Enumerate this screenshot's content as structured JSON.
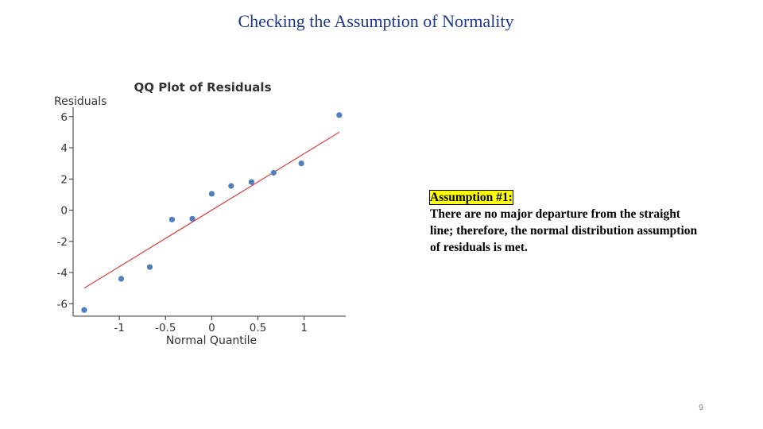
{
  "slide": {
    "title": "Checking the Assumption of Normality",
    "page_number": "9"
  },
  "note": {
    "heading": "Assumption #1:",
    "body": "There are no major departure from the straight line; therefore, the normal distribution assumption of residuals is met."
  },
  "chart_data": {
    "type": "scatter",
    "title": "QQ Plot of Residuals",
    "xlabel": "Normal Quantile",
    "ylabel": "Residuals",
    "xlim": [
      -1.5,
      1.45
    ],
    "ylim": [
      -6.8,
      6.6
    ],
    "xticks": [
      -1,
      -0.5,
      0,
      0.5,
      1
    ],
    "xtick_labels": [
      "-1",
      "-0.5",
      "0",
      "0.5",
      "1"
    ],
    "yticks": [
      6,
      4,
      2,
      0,
      -2,
      -4,
      -6
    ],
    "ytick_labels": [
      "6",
      "4",
      "2",
      "0",
      "-2",
      "-4",
      "-6"
    ],
    "points": [
      {
        "x": -1.38,
        "y": -6.4
      },
      {
        "x": -0.98,
        "y": -4.4
      },
      {
        "x": -0.67,
        "y": -3.65
      },
      {
        "x": -0.43,
        "y": -0.6
      },
      {
        "x": -0.21,
        "y": -0.55
      },
      {
        "x": 0.0,
        "y": 1.05
      },
      {
        "x": 0.21,
        "y": 1.55
      },
      {
        "x": 0.43,
        "y": 1.8
      },
      {
        "x": 0.67,
        "y": 2.4
      },
      {
        "x": 0.97,
        "y": 3.0
      },
      {
        "x": 1.38,
        "y": 6.1
      }
    ],
    "reference_line": {
      "x": [
        -1.38,
        1.38
      ],
      "y": [
        -5.0,
        5.0
      ]
    },
    "grid": false,
    "colors": {
      "points": "#4f7fbf",
      "line": "#e03c3c",
      "axis": "#333333"
    }
  }
}
